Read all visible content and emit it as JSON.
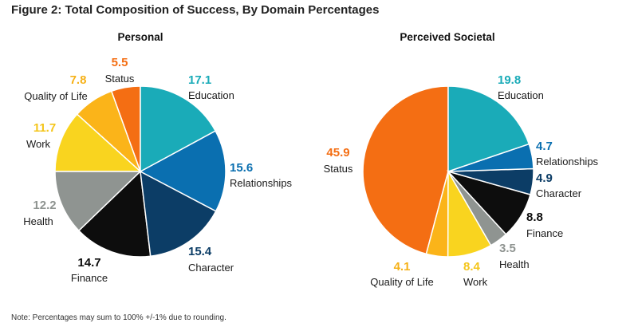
{
  "figure_title": "Figure 2: Total Composition of Success, By Domain Percentages",
  "note": "Note: Percentages may sum to 100% +/-1% due to rounding.",
  "colors": {
    "Education": "#1aabb8",
    "Relationships": "#0a6fb0",
    "Character": "#0c3d66",
    "Finance": "#0d0d0d",
    "Health": "#8f9491",
    "Work": "#f9d41f",
    "Quality of Life": "#fbb419",
    "Status": "#f46e13"
  },
  "value_colors": {
    "Education": "#1aabb8",
    "Relationships": "#0a6fb0",
    "Character": "#0c3d66",
    "Finance": "#0d0d0d",
    "Health": "#8f9491",
    "Work": "#f4c51a",
    "Quality of Life": "#f6b117",
    "Status": "#f46e13"
  },
  "chart_data": [
    {
      "type": "pie",
      "title": "Personal",
      "categories": [
        "Education",
        "Relationships",
        "Character",
        "Finance",
        "Health",
        "Work",
        "Quality of Life",
        "Status"
      ],
      "values": [
        17.1,
        15.6,
        15.4,
        14.7,
        12.2,
        11.7,
        7.8,
        5.5
      ],
      "direction": "clockwise from 12 o'clock"
    },
    {
      "type": "pie",
      "title": "Perceived Societal",
      "categories": [
        "Education",
        "Relationships",
        "Character",
        "Finance",
        "Health",
        "Work",
        "Quality of Life",
        "Status"
      ],
      "values": [
        19.8,
        4.7,
        4.9,
        8.8,
        3.5,
        8.4,
        4.1,
        45.9
      ],
      "direction": "clockwise from 12 o'clock"
    }
  ]
}
